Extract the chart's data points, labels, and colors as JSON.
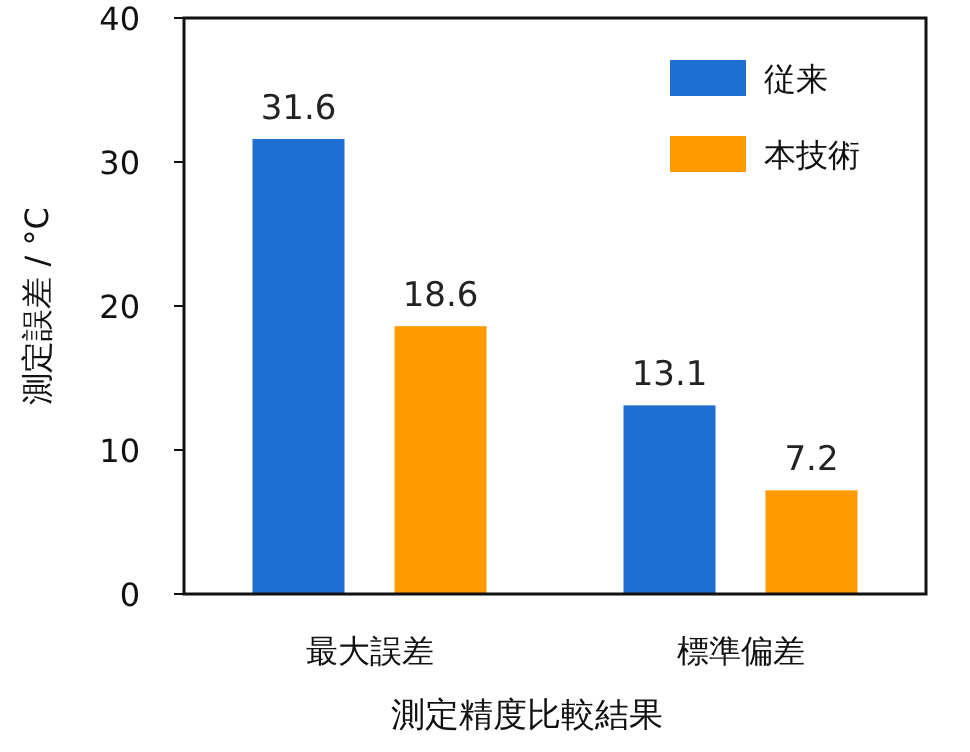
{
  "chart_data": {
    "type": "bar",
    "ylabel": "測定誤差 / °C",
    "xlabel": "測定精度比較結果",
    "categories": [
      "最大誤差",
      "標準偏差"
    ],
    "series": [
      {
        "name": "従来",
        "color": "#1f6fd3",
        "values": [
          31.6,
          13.1
        ]
      },
      {
        "name": "本技術",
        "color": "#ff9a00",
        "values": [
          18.6,
          7.2
        ]
      }
    ],
    "ylim": [
      0,
      40
    ],
    "yticks": [
      0,
      10,
      20,
      30,
      40
    ],
    "grid": false,
    "legend": "top right",
    "data_labels": true
  }
}
